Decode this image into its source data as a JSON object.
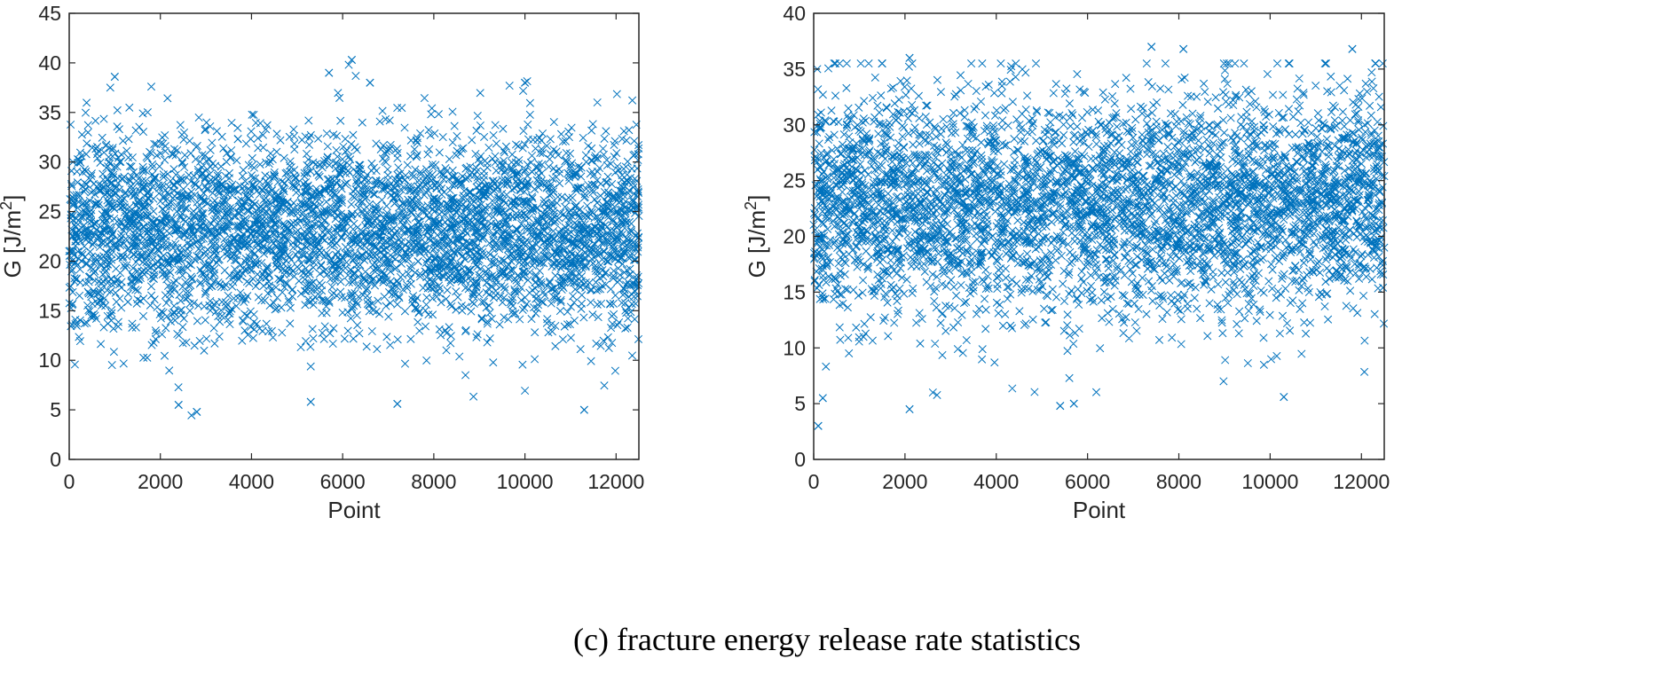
{
  "caption": "(c) fracture energy release rate statistics",
  "chart_data": [
    {
      "type": "scatter",
      "marker": "x",
      "color": "#0072BD",
      "xlabel": "Point",
      "ylabel_main": "G [J/m",
      "ylabel_sup": "2",
      "ylabel_close": "]",
      "xlim": [
        0,
        12500
      ],
      "ylim": [
        0,
        45
      ],
      "xticks": [
        0,
        2000,
        4000,
        6000,
        8000,
        10000,
        12000
      ],
      "xtick_labels": [
        "0",
        "2000",
        "4000",
        "6000",
        "8000",
        "10000",
        "12000"
      ],
      "yticks": [
        0,
        5,
        10,
        15,
        20,
        25,
        30,
        35,
        40,
        45
      ],
      "ytick_labels": [
        "0",
        "5",
        "10",
        "15",
        "20",
        "25",
        "30",
        "35",
        "40",
        "45"
      ],
      "n_points": 12500,
      "approx_mean": 23,
      "approx_std": 5,
      "notable_points": [
        [
          1000,
          38.6
        ],
        [
          5700,
          39
        ],
        [
          6200,
          40.3
        ],
        [
          6600,
          38
        ],
        [
          10000,
          38
        ],
        [
          2800,
          4.8
        ],
        [
          11300,
          5
        ],
        [
          2400,
          5.5
        ],
        [
          5300,
          5.8
        ],
        [
          7200,
          5.6
        ]
      ]
    },
    {
      "type": "scatter",
      "marker": "x",
      "color": "#0072BD",
      "xlabel": "Point",
      "ylabel_main": "G [J/m",
      "ylabel_sup": "2",
      "ylabel_close": "]",
      "xlim": [
        0,
        12500
      ],
      "ylim": [
        0,
        40
      ],
      "xticks": [
        0,
        2000,
        4000,
        6000,
        8000,
        10000,
        12000
      ],
      "xtick_labels": [
        "0",
        "2000",
        "4000",
        "6000",
        "8000",
        "10000",
        "12000"
      ],
      "yticks": [
        0,
        5,
        10,
        15,
        20,
        25,
        30,
        35,
        40
      ],
      "ytick_labels": [
        "0",
        "5",
        "10",
        "15",
        "20",
        "25",
        "30",
        "35",
        "40"
      ],
      "n_points": 12500,
      "approx_mean": 23,
      "approx_std": 5,
      "notable_points": [
        [
          7400,
          37
        ],
        [
          8100,
          36.8
        ],
        [
          11800,
          36.8
        ],
        [
          2100,
          36
        ],
        [
          100,
          3
        ],
        [
          2100,
          4.5
        ],
        [
          5400,
          4.8
        ],
        [
          5700,
          5
        ],
        [
          200,
          5.5
        ],
        [
          10300,
          5.6
        ]
      ]
    }
  ]
}
